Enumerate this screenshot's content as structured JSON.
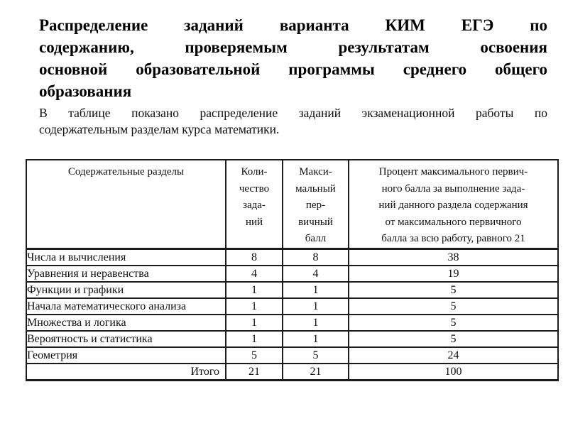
{
  "page": {
    "title_lines": [
      "Распределение заданий варианта КИМ ЕГЭ по",
      "содержанию, проверяемым результатам освоения",
      "основной образовательной программы среднего общего",
      "образования"
    ],
    "subtitle_lines": [
      "В таблице показано распределение заданий экзаменационной работы по",
      "содержательным разделам курса математики."
    ]
  },
  "table": {
    "headers": [
      "Содержательные разделы",
      "Коли-\nчество\nзада-\nний",
      "Макси-\nмальный\nпер-\nвичный\nбалл",
      "Процент максимального первич-\nного балла за выполнение зада-\nний данного раздела содержания\nот максимального первичного\nбалла за всю работу, равного 21"
    ],
    "rows": [
      {
        "section": "Числа и вычисления",
        "tasks": "8",
        "max_score": "8",
        "percent": "38"
      },
      {
        "section": "Уравнения и неравенства",
        "tasks": "4",
        "max_score": "4",
        "percent": "19"
      },
      {
        "section": "Функции и графики",
        "tasks": "1",
        "max_score": "1",
        "percent": "5"
      },
      {
        "section": "Начала математического анализа",
        "tasks": "1",
        "max_score": "1",
        "percent": "5"
      },
      {
        "section": "Множества и логика",
        "tasks": "1",
        "max_score": "1",
        "percent": "5"
      },
      {
        "section": "Вероятность и статистика",
        "tasks": "1",
        "max_score": "1",
        "percent": "5"
      },
      {
        "section": "Геометрия",
        "tasks": "5",
        "max_score": "5",
        "percent": "24"
      }
    ],
    "total_row": {
      "section": "Итого",
      "tasks": "21",
      "max_score": "21",
      "percent": "100"
    }
  },
  "colors": {
    "background": "#ffffff",
    "text": "#0e0e0e",
    "border": "#1c1c1c"
  }
}
